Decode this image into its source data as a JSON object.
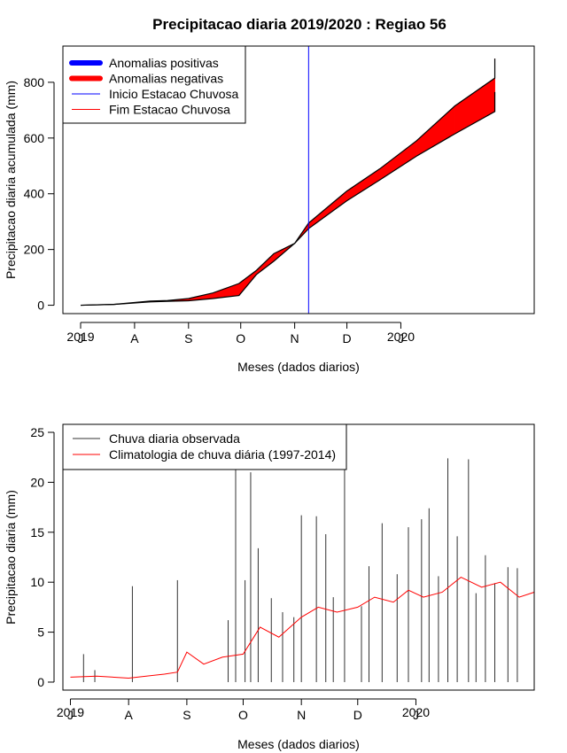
{
  "title": "Precipitacao diaria 2019/2020 : Regiao 56",
  "colors": {
    "positive": "#0000ff",
    "negative": "#ff0000",
    "line": "#000000",
    "bars": "#333333"
  },
  "chart_data": [
    {
      "type": "area",
      "xlabel": "Meses (dados diarios)",
      "ylabel": "Precipitacao diaria acumulada (mm)",
      "xticks": [
        "J",
        "A",
        "S",
        "O",
        "N",
        "D",
        "J"
      ],
      "year_labels": [
        "2019",
        "2020"
      ],
      "yticks": [
        0,
        200,
        400,
        600,
        800
      ],
      "ylim": [
        -30,
        930
      ],
      "x_range": [
        "2019-07-01",
        "2020-03-10"
      ],
      "grid": false,
      "legend": {
        "position": "top-left",
        "entries": [
          {
            "label": "Anomalias positivas",
            "color": "#0000ff",
            "kind": "thick"
          },
          {
            "label": "Anomalias negativas",
            "color": "#ff0000",
            "kind": "thick"
          },
          {
            "label": "Inicio Estacao Chuvosa",
            "color": "#0000ff",
            "kind": "thin"
          },
          {
            "label": "Fim Estacao Chuvosa",
            "color": "#ff0000",
            "kind": "thin"
          }
        ]
      },
      "rainy_season_start": "2019-11-09",
      "series": [
        {
          "name": "observed",
          "x": [
            "2019-07-01",
            "2019-07-20",
            "2019-08-10",
            "2019-08-20",
            "2019-09-01",
            "2019-09-15",
            "2019-09-30",
            "2019-10-10",
            "2019-10-20",
            "2019-11-01",
            "2019-11-09",
            "2019-12-01",
            "2019-12-20",
            "2020-01-10",
            "2020-02-01",
            "2020-02-24",
            "2020-02-24"
          ],
          "y": [
            0,
            3,
            12,
            14,
            16,
            24,
            35,
            110,
            158,
            222,
            275,
            375,
            450,
            535,
            615,
            695,
            765
          ]
        },
        {
          "name": "climatology",
          "x": [
            "2019-07-01",
            "2019-07-20",
            "2019-08-10",
            "2019-08-20",
            "2019-09-01",
            "2019-09-15",
            "2019-09-30",
            "2019-10-10",
            "2019-10-20",
            "2019-11-01",
            "2019-11-09",
            "2019-12-01",
            "2019-12-20",
            "2020-01-10",
            "2020-02-01",
            "2020-02-24",
            "2020-02-24"
          ],
          "y": [
            0,
            3,
            15,
            17,
            24,
            44,
            78,
            125,
            185,
            222,
            295,
            410,
            490,
            590,
            715,
            815,
            885
          ]
        }
      ]
    },
    {
      "type": "bar",
      "xlabel": "Meses (dados diarios)",
      "ylabel": "Precipitacao diaria (mm)",
      "xticks": [
        "J",
        "A",
        "S",
        "O",
        "N",
        "D",
        "J"
      ],
      "year_labels": [
        "2019",
        "2020"
      ],
      "yticks": [
        0,
        5,
        10,
        15,
        20,
        25
      ],
      "ylim": [
        -0.8,
        25.8
      ],
      "x_range": [
        "2019-06-27",
        "2020-03-04"
      ],
      "grid": false,
      "legend": {
        "position": "top-left",
        "entries": [
          {
            "label": "Chuva diaria observada",
            "color": "#333333"
          },
          {
            "label": "Climatologia de chuva diária (1997-2014)",
            "color": "#ff0000"
          }
        ]
      },
      "series": [
        {
          "name": "Chuva diaria observada",
          "x": [
            "2019-07-08",
            "2019-07-14",
            "2019-08-03",
            "2019-08-27",
            "2019-09-23",
            "2019-09-27",
            "2019-10-02",
            "2019-10-05",
            "2019-10-09",
            "2019-10-16",
            "2019-10-22",
            "2019-10-28",
            "2019-11-01",
            "2019-11-09",
            "2019-11-14",
            "2019-11-18",
            "2019-11-24",
            "2019-12-03",
            "2019-12-07",
            "2019-12-14",
            "2019-12-22",
            "2019-12-28",
            "2020-01-04",
            "2020-01-08",
            "2020-01-13",
            "2020-01-18",
            "2020-01-23",
            "2020-01-29",
            "2020-02-02",
            "2020-02-07",
            "2020-02-12",
            "2020-02-19",
            "2020-02-24"
          ],
          "y": [
            2.8,
            1.2,
            9.6,
            10.2,
            6.2,
            21.8,
            10.2,
            21.0,
            13.4,
            8.4,
            7.0,
            6.5,
            16.7,
            16.6,
            14.8,
            8.5,
            21.5,
            7.6,
            11.6,
            15.9,
            10.8,
            15.5,
            16.3,
            17.4,
            10.6,
            22.4,
            14.6,
            22.3,
            8.9,
            12.7,
            9.9,
            11.5,
            11.4
          ]
        },
        {
          "name": "Climatologia de chuva diária (1997-2014)",
          "x": [
            "2019-07-01",
            "2019-07-15",
            "2019-08-01",
            "2019-08-20",
            "2019-08-27",
            "2019-09-01",
            "2019-09-10",
            "2019-09-20",
            "2019-10-01",
            "2019-10-10",
            "2019-10-20",
            "2019-11-01",
            "2019-11-10",
            "2019-11-20",
            "2019-12-01",
            "2019-12-10",
            "2019-12-20",
            "2019-12-28",
            "2020-01-05",
            "2020-01-15",
            "2020-01-25",
            "2020-02-05",
            "2020-02-15",
            "2020-02-25",
            "2020-03-04"
          ],
          "y": [
            0.5,
            0.6,
            0.4,
            0.8,
            1.0,
            3.0,
            1.8,
            2.5,
            2.8,
            5.5,
            4.5,
            6.5,
            7.5,
            7.0,
            7.5,
            8.5,
            8.0,
            9.2,
            8.5,
            9.0,
            10.5,
            9.5,
            10.0,
            8.5,
            9.0
          ]
        }
      ]
    }
  ]
}
